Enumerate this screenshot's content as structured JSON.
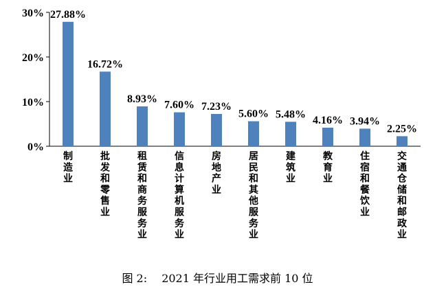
{
  "caption": "图 2:　 2021 年行业用工需求前 10 位",
  "chart_data": {
    "type": "bar",
    "title": "",
    "xlabel": "",
    "ylabel": "",
    "ylim": [
      0,
      30
    ],
    "yticks": [
      "0%",
      "10%",
      "20%",
      "30%"
    ],
    "ytick_values": [
      0,
      10,
      20,
      30
    ],
    "grid": false,
    "bar_color": "#4F81BD",
    "categories": [
      "制造业",
      "批发和零售业",
      "租赁和商务服务业",
      "信息计算机服务业",
      "房地产业",
      "居民和其他服务业",
      "建筑业",
      "教育业",
      "住宿和餐饮业",
      "交通仓储和邮政业"
    ],
    "values": [
      27.88,
      16.72,
      8.93,
      7.6,
      7.23,
      5.6,
      5.48,
      4.16,
      3.94,
      2.25
    ],
    "data_labels": [
      "27.88%",
      "16.72%",
      "8.93%",
      "7.60%",
      "7.23%",
      "5.60%",
      "5.48%",
      "4.16%",
      "3.94%",
      "2.25%"
    ]
  }
}
